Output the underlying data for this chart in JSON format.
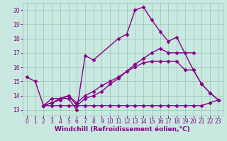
{
  "background_color": "#c8e8e0",
  "grid_color": "#a0c8c0",
  "line_color": "#880088",
  "marker": "D",
  "markersize": 2.5,
  "linewidth": 1.0,
  "xlabel": "Windchill (Refroidissement éolien,°C)",
  "xlabel_fontsize": 6.5,
  "xlim": [
    -0.5,
    23.5
  ],
  "ylim": [
    12.6,
    20.5
  ],
  "xticks": [
    0,
    1,
    2,
    3,
    4,
    5,
    6,
    7,
    8,
    9,
    10,
    11,
    12,
    13,
    14,
    15,
    16,
    17,
    18,
    19,
    20,
    21,
    22,
    23
  ],
  "yticks": [
    13,
    14,
    15,
    16,
    17,
    18,
    19,
    20
  ],
  "tick_fontsize": 5.5,
  "lines": [
    {
      "x": [
        0,
        1,
        2,
        3,
        4,
        5,
        6,
        7,
        8,
        11,
        12,
        13,
        14,
        15,
        16,
        17,
        18,
        20,
        21,
        22,
        23
      ],
      "y": [
        15.3,
        15.0,
        13.3,
        13.8,
        13.8,
        13.8,
        13.0,
        16.8,
        16.5,
        18.0,
        18.3,
        20.0,
        20.2,
        19.3,
        18.5,
        17.8,
        18.1,
        15.8,
        14.8,
        14.2,
        13.7
      ]
    },
    {
      "x": [
        2,
        3,
        4,
        5,
        6,
        7,
        8,
        9,
        10,
        11,
        12,
        13,
        14,
        15,
        16,
        17,
        18,
        19,
        20
      ],
      "y": [
        13.3,
        13.5,
        13.8,
        14.0,
        13.3,
        13.8,
        14.0,
        14.3,
        14.8,
        15.2,
        15.7,
        16.2,
        16.6,
        17.0,
        17.3,
        17.0,
        17.0,
        17.0,
        17.0
      ]
    },
    {
      "x": [
        2,
        3,
        4,
        5,
        6,
        7,
        8,
        9,
        10,
        11,
        12,
        13,
        14,
        15,
        16,
        17,
        18,
        19,
        20,
        21,
        22,
        23
      ],
      "y": [
        13.3,
        13.3,
        13.3,
        13.3,
        13.3,
        13.3,
        13.3,
        13.3,
        13.3,
        13.3,
        13.3,
        13.3,
        13.3,
        13.3,
        13.3,
        13.3,
        13.3,
        13.3,
        13.3,
        13.3,
        13.5,
        13.7
      ]
    },
    {
      "x": [
        2,
        3,
        4,
        5,
        6,
        7,
        8,
        9,
        10,
        11,
        12,
        13,
        14,
        15,
        16,
        17,
        18,
        19,
        20,
        21,
        22,
        23
      ],
      "y": [
        13.3,
        13.5,
        13.7,
        14.0,
        13.5,
        14.0,
        14.3,
        14.7,
        15.0,
        15.3,
        15.7,
        16.0,
        16.3,
        16.4,
        16.4,
        16.4,
        16.4,
        15.8,
        15.8,
        14.8,
        14.2,
        13.7
      ]
    }
  ]
}
